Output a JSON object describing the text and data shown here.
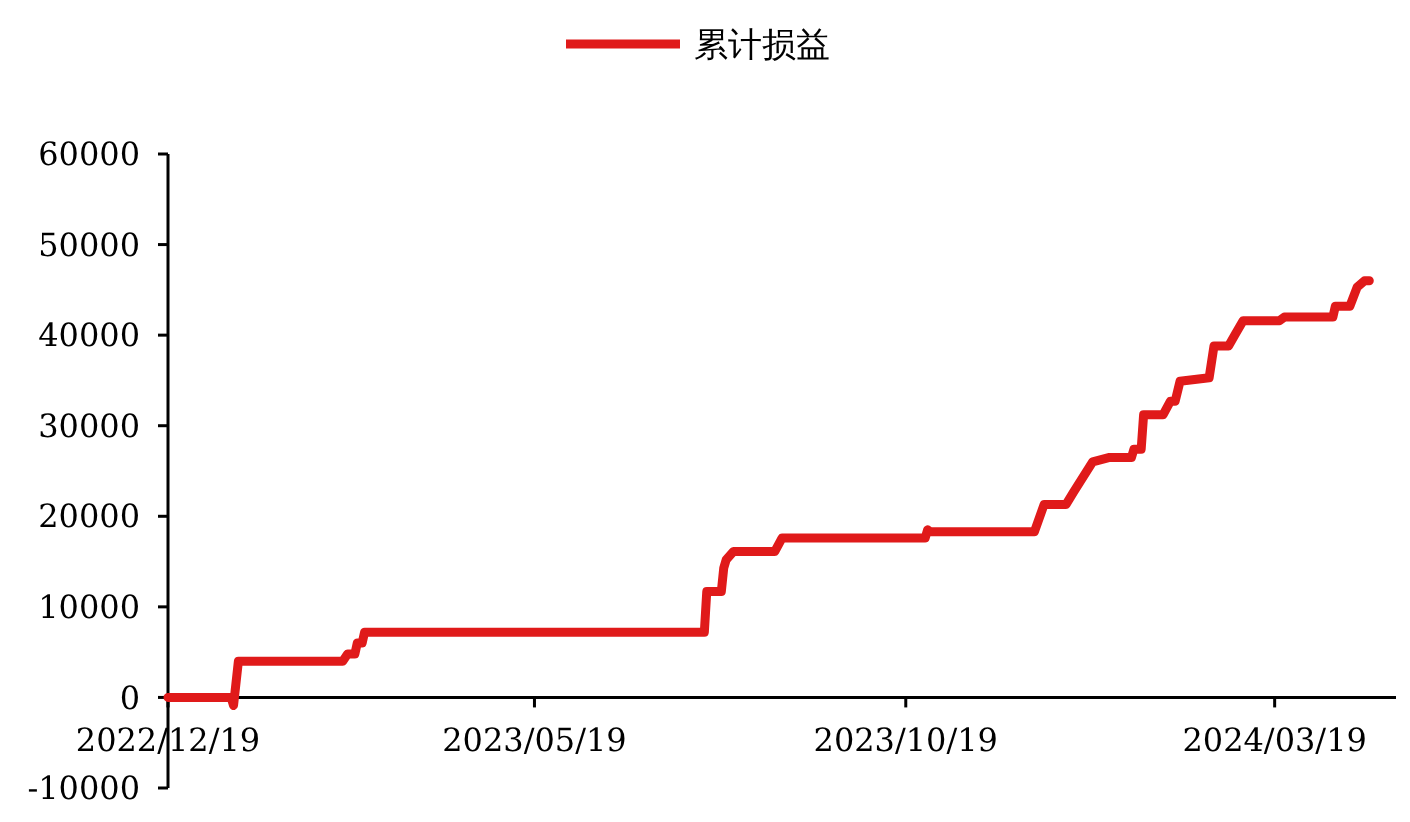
{
  "chart_data": {
    "type": "line",
    "legend": "top",
    "line_style": "solid",
    "marker": "none",
    "grid": false,
    "xlim": [
      "2022-12-19",
      "2024-05-08"
    ],
    "xticks": [
      {
        "value": "2022-12-19",
        "label": "2022/12/19"
      },
      {
        "value": "2023-05-19",
        "label": "2023/05/19"
      },
      {
        "value": "2023-10-19",
        "label": "2023/10/19"
      },
      {
        "value": "2024-03-19",
        "label": "2024/03/19"
      }
    ],
    "ylim": [
      -10000,
      60000
    ],
    "yticks": [
      -10000,
      0,
      10000,
      20000,
      30000,
      40000,
      50000,
      60000
    ],
    "x": [
      "2022-12-19",
      "2023-01-14",
      "2023-01-15",
      "2023-01-17",
      "2023-03-01",
      "2023-03-03",
      "2023-03-06",
      "2023-03-07",
      "2023-03-09",
      "2023-03-10",
      "2023-07-28",
      "2023-07-29",
      "2023-08-04",
      "2023-08-05",
      "2023-08-06",
      "2023-08-09",
      "2023-08-26",
      "2023-08-29",
      "2023-10-27",
      "2023-10-28",
      "2023-10-29",
      "2023-12-11",
      "2023-12-15",
      "2023-12-24",
      "2023-12-27",
      "2024-01-04",
      "2024-01-11",
      "2024-01-20",
      "2024-01-21",
      "2024-01-24",
      "2024-01-25",
      "2024-02-02",
      "2024-02-05",
      "2024-02-07",
      "2024-02-09",
      "2024-02-21",
      "2024-02-23",
      "2024-02-29",
      "2024-03-03",
      "2024-03-06",
      "2024-03-21",
      "2024-03-23",
      "2024-04-12",
      "2024-04-13",
      "2024-04-19",
      "2024-04-22",
      "2024-04-25",
      "2024-04-27"
    ],
    "series": [
      {
        "name": "累计损益",
        "color": "#e01a1a",
        "values": [
          0,
          0,
          -900,
          4000,
          4000,
          4800,
          4800,
          6000,
          6000,
          7200,
          7200,
          11700,
          11700,
          14300,
          15200,
          16100,
          16100,
          17600,
          17600,
          18500,
          18300,
          18300,
          21300,
          21300,
          22600,
          26000,
          26500,
          26500,
          27400,
          27400,
          31200,
          31200,
          32700,
          32700,
          34900,
          35300,
          38800,
          38800,
          40200,
          41600,
          41600,
          42000,
          42000,
          43200,
          43200,
          45300,
          46000,
          46000
        ]
      }
    ]
  }
}
